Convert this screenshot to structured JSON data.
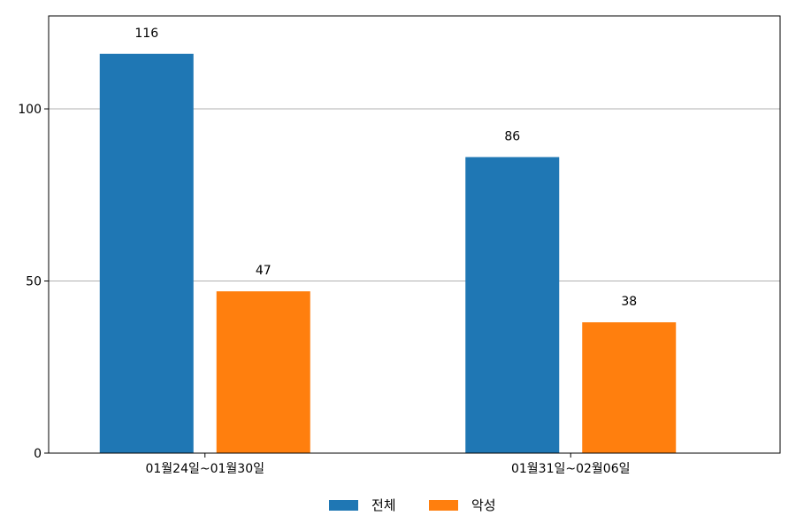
{
  "chart_data": {
    "type": "bar",
    "categories": [
      "01월24일~01월30일",
      "01월31일~02월06일"
    ],
    "series": [
      {
        "name": "전체",
        "values": [
          116,
          86
        ],
        "color": "#1f77b4"
      },
      {
        "name": "악성",
        "values": [
          47,
          38
        ],
        "color": "#ff7f0e"
      }
    ],
    "ylim": [
      0,
      127
    ],
    "yticks": [
      0,
      50,
      100
    ],
    "grid": "horizontal",
    "legend_position": "bottom-center"
  }
}
